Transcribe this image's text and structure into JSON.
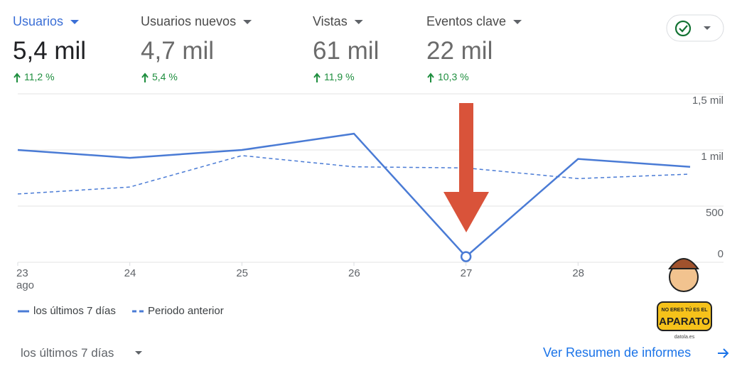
{
  "metrics": [
    {
      "label": "Usuarios",
      "value": "5,4 mil",
      "change": "11,2 %"
    },
    {
      "label": "Usuarios nuevos",
      "value": "4,7 mil",
      "change": "5,4 %"
    },
    {
      "label": "Vistas",
      "value": "61 mil",
      "change": "11,9 %"
    },
    {
      "label": "Eventos clave",
      "value": "22 mil",
      "change": "10,3 %"
    }
  ],
  "chart_data": {
    "type": "line",
    "categories": [
      "23 ago",
      "24",
      "25",
      "26",
      "27",
      "28",
      null
    ],
    "series": [
      {
        "name": "los últimos 7 días",
        "color": "#4a7bd5",
        "style": "solid",
        "values": [
          1000,
          930,
          1000,
          1145,
          50,
          920,
          850
        ]
      },
      {
        "name": "Periodo anterior",
        "color": "#4a7bd5",
        "style": "dashed",
        "values": [
          608,
          670,
          950,
          850,
          840,
          745,
          785
        ]
      }
    ],
    "ylim": [
      0,
      1500
    ],
    "yticks": [
      0,
      500,
      {
        "value": 1000,
        "label": "1 mil"
      },
      {
        "value": 1500,
        "label": "1,5 mil"
      }
    ],
    "grid": true
  },
  "footer": {
    "period": "los últimos 7 días",
    "link": "Ver Resumen de informes"
  },
  "watermark": {
    "top": "NO ERES TÚ ES EL",
    "main": "APARATO",
    "site": "datola.es"
  }
}
